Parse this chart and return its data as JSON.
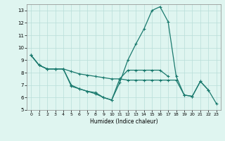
{
  "xlabel": "Humidex (Indice chaleur)",
  "x": [
    0,
    1,
    2,
    3,
    4,
    5,
    6,
    7,
    8,
    9,
    10,
    11,
    12,
    13,
    14,
    15,
    16,
    17,
    18,
    19,
    20,
    21,
    22,
    23
  ],
  "series1": [
    9.4,
    8.6,
    8.3,
    8.3,
    8.3,
    7.0,
    6.7,
    6.5,
    6.4,
    6.0,
    5.8,
    7.2,
    9.0,
    10.3,
    11.5,
    13.0,
    13.3,
    12.1,
    7.7,
    6.2,
    6.1,
    7.3,
    6.6,
    null
  ],
  "series2": [
    9.4,
    8.6,
    8.3,
    8.3,
    8.3,
    6.9,
    6.7,
    6.5,
    6.3,
    6.0,
    5.8,
    7.5,
    8.2,
    8.2,
    8.2,
    8.2,
    8.2,
    7.7,
    null,
    null,
    null,
    null,
    null,
    null
  ],
  "series3": [
    9.4,
    8.6,
    8.3,
    8.3,
    8.3,
    8.1,
    7.9,
    7.8,
    7.7,
    7.6,
    7.5,
    7.5,
    7.4,
    7.4,
    7.4,
    7.4,
    7.4,
    7.4,
    7.4,
    6.2,
    6.1,
    7.3,
    6.6,
    5.5
  ],
  "line_color": "#1a7a6e",
  "bg_color": "#dff5f0",
  "grid_color": "#b8ddd8",
  "ylim": [
    5,
    13.5
  ],
  "xlim": [
    -0.5,
    23.5
  ],
  "yticks": [
    5,
    6,
    7,
    8,
    9,
    10,
    11,
    12,
    13
  ],
  "xticks": [
    0,
    1,
    2,
    3,
    4,
    5,
    6,
    7,
    8,
    9,
    10,
    11,
    12,
    13,
    14,
    15,
    16,
    17,
    18,
    19,
    20,
    21,
    22,
    23
  ]
}
